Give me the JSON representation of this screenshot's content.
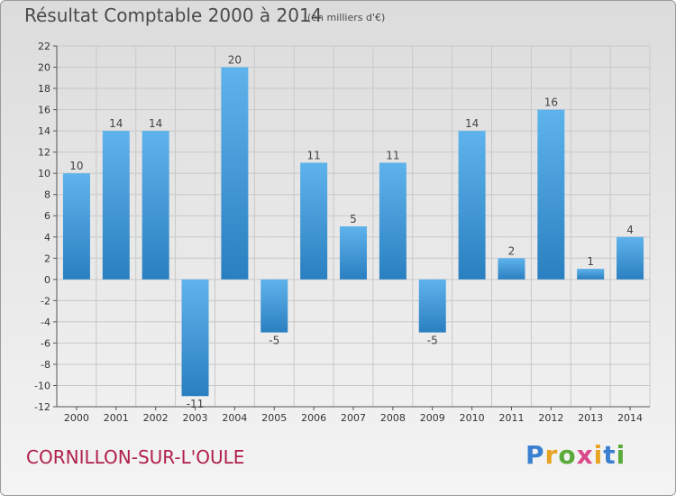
{
  "title": "Résultat Comptable 2000 à 2014",
  "subtitle": "(en milliers d'€)",
  "commune": "CORNILLON-SUR-L'OULE",
  "brand": {
    "letters": [
      "P",
      "r",
      "o",
      "x",
      "i",
      "t",
      "i"
    ],
    "colors": [
      "#3b7fd0",
      "#e7a321",
      "#5aaa3a",
      "#d94a8a",
      "#e7a321",
      "#3b7fd0",
      "#5aaa3a"
    ]
  },
  "chart_data": {
    "type": "bar",
    "title": "Résultat Comptable 2000 à 2014",
    "ylabel": "en milliers d'€",
    "xlabel": "",
    "categories": [
      "2000",
      "2001",
      "2002",
      "2003",
      "2004",
      "2005",
      "2006",
      "2007",
      "2008",
      "2009",
      "2010",
      "2011",
      "2012",
      "2013",
      "2014"
    ],
    "values": [
      10,
      14,
      14,
      -11,
      20,
      -5,
      11,
      5,
      11,
      -5,
      14,
      2,
      16,
      1,
      4
    ],
    "ylim": [
      -12,
      22
    ],
    "yticks": [
      22,
      20,
      18,
      16,
      14,
      12,
      10,
      8,
      6,
      4,
      2,
      0,
      -2,
      -4,
      -6,
      -8,
      -10,
      -12
    ],
    "grid": true,
    "bar_color": "#4a9fdf"
  }
}
